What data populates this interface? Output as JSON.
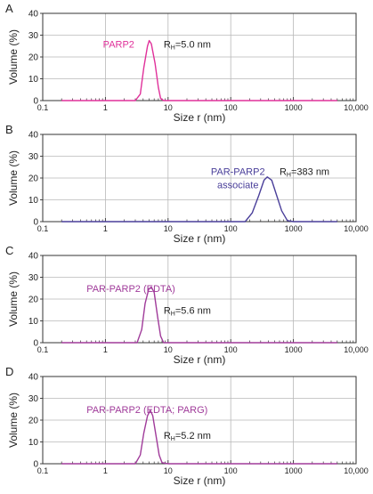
{
  "colors": {
    "grid": "#b8b8b8",
    "axis": "#333333",
    "text": "#222222",
    "panelA": "#e0309a",
    "panelB": "#4a3f9a",
    "panelC": "#a03b9a",
    "panelD": "#a03b9a"
  },
  "chart_data": [
    {
      "type": "line",
      "panel_label": "A",
      "xlabel": "Size r (nm)",
      "ylabel": "Volume (%)",
      "xscale": "log",
      "xlim": [
        0.1,
        10000
      ],
      "ylim": [
        0,
        40
      ],
      "xticks": [
        "0.1",
        "1",
        "10",
        "100",
        "1000",
        "10,000"
      ],
      "yticks": [
        "0",
        "10",
        "20",
        "30",
        "40"
      ],
      "grid": true,
      "series": [
        {
          "name": "PARP2",
          "color": "#e0309a",
          "x": [
            0.2,
            3.0,
            3.6,
            4.1,
            4.7,
            5.0,
            5.4,
            6.2,
            7.0,
            7.6,
            8.5,
            10,
            100,
            1000,
            5000
          ],
          "y": [
            0,
            0,
            3,
            15,
            25,
            27.5,
            26,
            17,
            6,
            1,
            0,
            0,
            0,
            0,
            0
          ]
        }
      ],
      "annotations": [
        {
          "text": "PARP2",
          "x": 2.9,
          "y": 26
        },
        {
          "text": "RH=5.0 nm",
          "x": 8.5,
          "y": 26
        }
      ]
    },
    {
      "type": "line",
      "panel_label": "B",
      "xlabel": "Size r (nm)",
      "ylabel": "Volume (%)",
      "xscale": "log",
      "xlim": [
        0.1,
        10000
      ],
      "ylim": [
        0,
        40
      ],
      "xticks": [
        "0.1",
        "1",
        "10",
        "100",
        "1000",
        "10,000"
      ],
      "yticks": [
        "0",
        "10",
        "20",
        "30",
        "40"
      ],
      "grid": true,
      "series": [
        {
          "name": "PAR-PARP2 associate",
          "color": "#4a3f9a",
          "x": [
            0.2,
            10,
            100,
            170,
            220,
            280,
            340,
            383,
            450,
            540,
            650,
            800,
            1000,
            5000
          ],
          "y": [
            0,
            0,
            0,
            0,
            4,
            12,
            19,
            20.5,
            19,
            12,
            5,
            0.5,
            0,
            0
          ]
        }
      ],
      "annotations": [
        {
          "text": "PAR-PARP2",
          "x": 130,
          "y": 23
        },
        {
          "text": "associate",
          "x": 130,
          "y": 17
        },
        {
          "text": "RH=383 nm",
          "x": 600,
          "y": 23
        }
      ]
    },
    {
      "type": "line",
      "panel_label": "C",
      "xlabel": "Size r (nm)",
      "ylabel": "Volume (%)",
      "xscale": "log",
      "xlim": [
        0.1,
        10000
      ],
      "ylim": [
        0,
        40
      ],
      "xticks": [
        "0.1",
        "1",
        "10",
        "100",
        "1000",
        "10,000"
      ],
      "yticks": [
        "0",
        "10",
        "20",
        "30",
        "40"
      ],
      "grid": true,
      "series": [
        {
          "name": "PAR-PARP2 (EDTA)",
          "color": "#a03b9a",
          "x": [
            0.2,
            3.2,
            3.8,
            4.3,
            4.9,
            5.4,
            6.0,
            6.8,
            7.6,
            8.5,
            10,
            100,
            1000,
            5000
          ],
          "y": [
            0,
            0,
            6,
            18,
            24.5,
            25.5,
            23,
            12,
            3,
            0,
            0,
            0,
            0,
            0
          ]
        }
      ],
      "annotations": [
        {
          "text": "PAR-PARP2 (EDTA)",
          "x": 0.5,
          "y": 25
        },
        {
          "text": "RH=5.6 nm",
          "x": 8.5,
          "y": 15
        }
      ]
    },
    {
      "type": "line",
      "panel_label": "D",
      "xlabel": "Size r (nm)",
      "ylabel": "Volume (%)",
      "xscale": "log",
      "xlim": [
        0.1,
        10000
      ],
      "ylim": [
        0,
        40
      ],
      "xticks": [
        "0.1",
        "1",
        "10",
        "100",
        "1000",
        "10,000"
      ],
      "yticks": [
        "0",
        "10",
        "20",
        "30",
        "40"
      ],
      "grid": true,
      "series": [
        {
          "name": "PAR-PARP2 (EDTA; PARG)",
          "color": "#a03b9a",
          "x": [
            0.2,
            3.0,
            3.6,
            4.1,
            4.7,
            5.2,
            5.7,
            6.4,
            7.2,
            8.0,
            10,
            100,
            1000,
            5000
          ],
          "y": [
            0,
            0,
            4,
            14,
            22,
            24.5,
            22,
            13,
            4,
            0.5,
            0,
            0,
            0,
            0
          ]
        }
      ],
      "annotations": [
        {
          "text": "PAR-PARP2 (EDTA; PARG)",
          "x": 0.5,
          "y": 25
        },
        {
          "text": "RH=5.2 nm",
          "x": 8.5,
          "y": 13
        }
      ]
    }
  ]
}
